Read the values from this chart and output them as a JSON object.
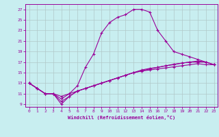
{
  "xlabel": "Windchill (Refroidissement éolien,°C)",
  "background_color": "#c8eef0",
  "line_color": "#990099",
  "grid_color": "#b0c8c8",
  "xlim": [
    -0.5,
    23.5
  ],
  "ylim": [
    8.5,
    28.0
  ],
  "yticks": [
    9,
    11,
    13,
    15,
    17,
    19,
    21,
    23,
    25,
    27
  ],
  "xticks": [
    0,
    1,
    2,
    3,
    4,
    5,
    6,
    7,
    8,
    9,
    10,
    11,
    12,
    13,
    14,
    15,
    16,
    17,
    18,
    19,
    20,
    21,
    22,
    23
  ],
  "line1_x": [
    0,
    1,
    2,
    3,
    4,
    5,
    6,
    7,
    8,
    9,
    10,
    11,
    12,
    13,
    14,
    15,
    16,
    17,
    18,
    19,
    20,
    21,
    22,
    23
  ],
  "line1_y": [
    13.0,
    12.0,
    11.0,
    11.0,
    10.5,
    11.0,
    12.5,
    16.0,
    18.5,
    22.5,
    24.5,
    25.5,
    26.0,
    27.0,
    27.0,
    26.5,
    23.0,
    21.0,
    19.0,
    18.5,
    18.0,
    17.5,
    17.0,
    16.5
  ],
  "line2_x": [
    0,
    1,
    2,
    3,
    4,
    5,
    6,
    7,
    8,
    9,
    10,
    11,
    12,
    13,
    14,
    15,
    16,
    17,
    18,
    19,
    20,
    21,
    22,
    23
  ],
  "line2_y": [
    13.0,
    12.0,
    11.0,
    11.0,
    9.0,
    10.5,
    11.5,
    12.0,
    12.5,
    13.0,
    13.5,
    14.0,
    14.5,
    15.0,
    15.3,
    15.5,
    15.7,
    15.9,
    16.1,
    16.3,
    16.5,
    16.7,
    16.5,
    16.5
  ],
  "line3_x": [
    0,
    1,
    2,
    3,
    4,
    5,
    6,
    7,
    8,
    9,
    10,
    11,
    12,
    13,
    14,
    15,
    16,
    17,
    18,
    19,
    20,
    21,
    22,
    23
  ],
  "line3_y": [
    13.0,
    12.0,
    11.0,
    11.0,
    9.5,
    10.5,
    11.5,
    12.0,
    12.5,
    13.0,
    13.5,
    14.0,
    14.5,
    15.0,
    15.5,
    15.8,
    16.0,
    16.3,
    16.5,
    16.8,
    17.0,
    17.2,
    17.0,
    16.5
  ],
  "line4_x": [
    0,
    1,
    2,
    3,
    4,
    5,
    6,
    7,
    8,
    9,
    10,
    11,
    12,
    13,
    14,
    15,
    16,
    17,
    18,
    19,
    20,
    21,
    22,
    23
  ],
  "line4_y": [
    13.0,
    12.0,
    11.0,
    11.0,
    10.0,
    11.0,
    11.5,
    12.0,
    12.5,
    13.0,
    13.5,
    14.0,
    14.5,
    15.0,
    15.3,
    15.7,
    16.0,
    16.3,
    16.6,
    16.8,
    17.0,
    17.0,
    17.0,
    16.5
  ]
}
